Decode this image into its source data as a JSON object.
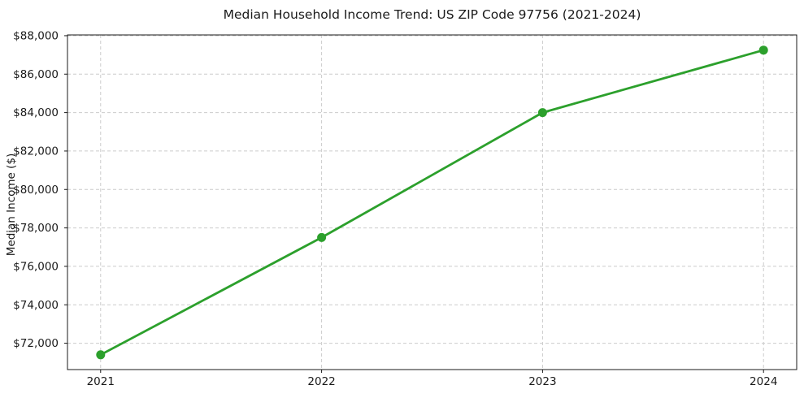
{
  "chart_data": {
    "type": "line",
    "title": "Median Household Income Trend: US ZIP Code 97756 (2021-2024)",
    "xlabel": "",
    "ylabel": "Median Income ($)",
    "x": [
      2021,
      2022,
      2023,
      2024
    ],
    "series": [
      {
        "name": "Median Household Income",
        "values": [
          71400,
          77500,
          84000,
          87250
        ]
      }
    ],
    "xticks": [
      {
        "value": 2021,
        "label": "2021"
      },
      {
        "value": 2022,
        "label": "2022"
      },
      {
        "value": 2023,
        "label": "2023"
      },
      {
        "value": 2024,
        "label": "2024"
      }
    ],
    "yticks": [
      {
        "value": 72000,
        "label": "$72,000"
      },
      {
        "value": 74000,
        "label": "$74,000"
      },
      {
        "value": 76000,
        "label": "$76,000"
      },
      {
        "value": 78000,
        "label": "$78,000"
      },
      {
        "value": 80000,
        "label": "$80,000"
      },
      {
        "value": 82000,
        "label": "$82,000"
      },
      {
        "value": 84000,
        "label": "$84,000"
      },
      {
        "value": 86000,
        "label": "$86,000"
      },
      {
        "value": 88000,
        "label": "$88,000"
      }
    ],
    "xlim": [
      2020.85,
      2024.15
    ],
    "ylim": [
      70630,
      88040
    ],
    "grid": true,
    "grid_style": "dashed",
    "legend_position": "none",
    "marker": "circle",
    "colors": {
      "line": "#2ca02c",
      "marker": "#2ca02c",
      "grid": "#cccccc",
      "spine": "#1a1a1a",
      "text": "#1a1a1a",
      "background": "#ffffff"
    }
  }
}
